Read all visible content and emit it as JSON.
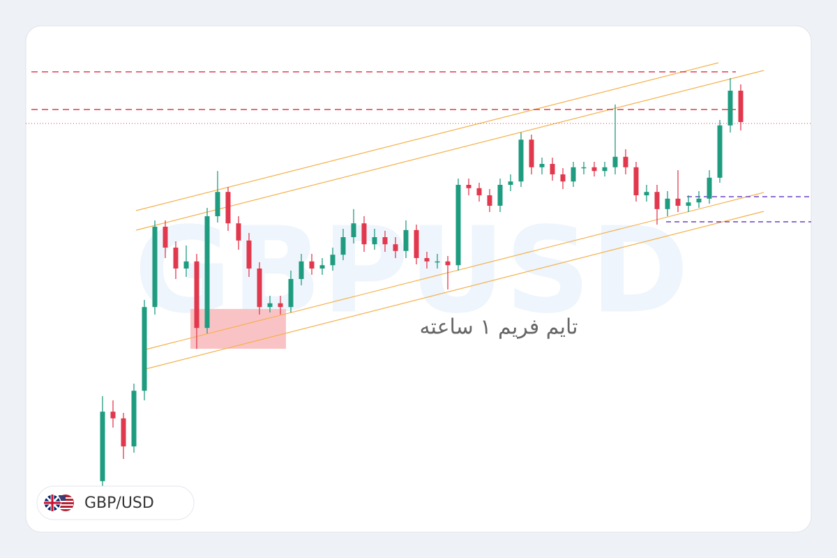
{
  "chart_data": {
    "type": "candlestick",
    "watermark": "GBPUSD",
    "annotation": "تایم فریم ۱ ساعته",
    "symbol": "GBP/USD",
    "up_color": "#1f9c80",
    "down_color": "#e2384d",
    "ylim": [
      0,
      100
    ],
    "open": [
      1.7,
      18.3,
      16.7,
      10,
      23.3,
      43.3,
      62.5,
      57.5,
      52.5,
      54.2,
      38.3,
      65,
      70.8,
      63.3,
      59.2,
      52.5,
      43.3,
      44.2,
      43.3,
      50,
      54.2,
      52.5,
      53.3,
      55.8,
      60,
      63.3,
      58.3,
      60,
      58.3,
      56.7,
      61.7,
      55,
      54.2,
      54.2,
      53.3,
      72.5,
      71.7,
      70,
      67.5,
      72.5,
      73.3,
      83.3,
      76.7,
      77.5,
      75,
      73.3,
      76.7,
      76.7,
      75.8,
      76.7,
      79.2,
      76.7,
      70,
      70.8,
      66.7,
      69.2,
      67.5,
      68.3,
      69.2,
      74.2,
      86.7,
      95
    ],
    "high": [
      22,
      21,
      18,
      25,
      45,
      64,
      64,
      59,
      58,
      56,
      67,
      75.8,
      72,
      65,
      61,
      54,
      46,
      46,
      52,
      56,
      56,
      55,
      57.5,
      62,
      66.7,
      65,
      62,
      61.5,
      60,
      64,
      63,
      56.5,
      56,
      55.5,
      74,
      74,
      73,
      71.5,
      74,
      75,
      85,
      84.5,
      79,
      79,
      76.5,
      78,
      78,
      78,
      78,
      91.7,
      81,
      78,
      72.5,
      72.5,
      71,
      76,
      70,
      71,
      76,
      88,
      98,
      96.5
    ],
    "low": [
      0,
      14.5,
      7,
      8.5,
      21,
      41.5,
      55,
      50,
      50.5,
      33.3,
      37,
      63.5,
      61.5,
      57,
      50.5,
      41.5,
      42,
      41.5,
      42,
      48.5,
      51,
      51,
      52,
      54.5,
      58.5,
      56.5,
      57,
      56.5,
      55,
      55,
      53.5,
      52.5,
      52.5,
      47.5,
      52,
      70,
      68.5,
      66,
      66,
      71,
      72,
      75,
      75,
      73.5,
      71.5,
      72,
      75,
      74.5,
      74.5,
      75,
      75,
      68.5,
      68.5,
      63,
      65,
      66,
      66,
      67,
      68,
      73,
      85,
      85.5
    ],
    "close": [
      18.3,
      16.7,
      10,
      23.3,
      43.3,
      62.5,
      57.5,
      52.5,
      54.2,
      38.3,
      65,
      70.8,
      63.3,
      59.2,
      52.5,
      43.3,
      44.2,
      43.3,
      50,
      54.2,
      52.5,
      53.3,
      55.8,
      60,
      63.3,
      58.3,
      60,
      58.3,
      56.7,
      61.7,
      55,
      54.2,
      54.2,
      53.3,
      72.5,
      71.7,
      70,
      67.5,
      72.5,
      73.3,
      83.3,
      76.7,
      77.5,
      75,
      73.3,
      76.7,
      76.7,
      75.8,
      76.7,
      79.2,
      76.7,
      70,
      70.8,
      66.7,
      69.2,
      67.5,
      68.3,
      69.2,
      74.2,
      86.7,
      95,
      87.5
    ]
  }
}
